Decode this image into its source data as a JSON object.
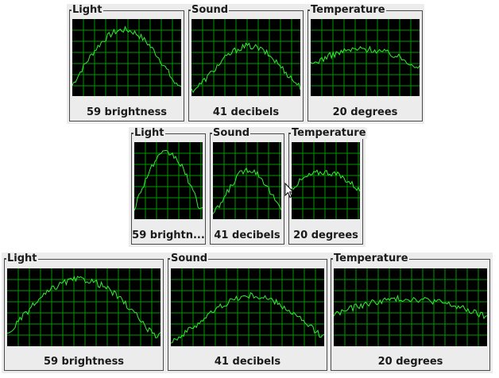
{
  "rows": [
    {
      "panels": [
        {
          "title": "Light",
          "value": "59 brightness",
          "icon": "light-chart"
        },
        {
          "title": "Sound",
          "value": "41 decibels",
          "icon": "sound-chart"
        },
        {
          "title": "Temperature",
          "value": "20 degrees",
          "icon": "temperature-chart"
        }
      ]
    },
    {
      "panels": [
        {
          "title": "Light",
          "value": "59 brightn..."
        },
        {
          "title": "Sound",
          "value": "41 decibels"
        },
        {
          "title": "Temperature",
          "value": "20 degrees"
        }
      ]
    },
    {
      "panels": [
        {
          "title": "Light",
          "value": "59 brightness"
        },
        {
          "title": "Sound",
          "value": "41 decibels"
        },
        {
          "title": "Temperature",
          "value": "20 degrees"
        }
      ]
    }
  ],
  "colors": {
    "graph_bg": "#000000",
    "grid": "#009900",
    "line": "#33ee33",
    "window_bg": "#ececec"
  },
  "icons": {
    "cursor": "mouse-pointer-icon"
  }
}
